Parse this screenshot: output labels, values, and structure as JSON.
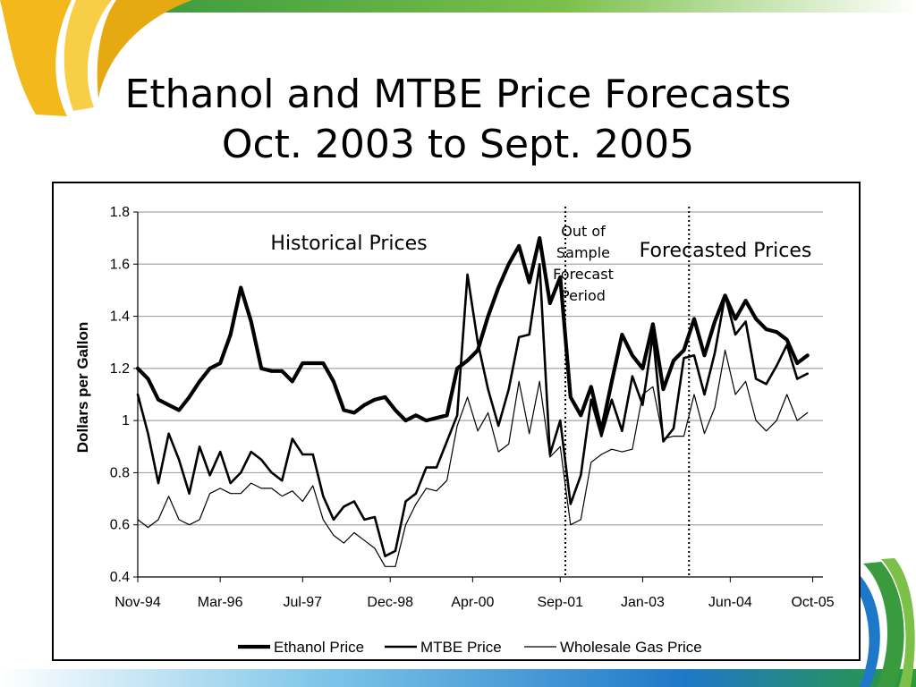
{
  "slide": {
    "title_line1": "Ethanol and MTBE Price Forecasts",
    "title_line2": "Oct. 2003 to Sept. 2005",
    "colors": {
      "accent_gold": "#f2b81c",
      "accent_green": "#3a9a3e",
      "accent_blue": "#1e78c8"
    }
  },
  "chart_data": {
    "type": "line",
    "title": "",
    "xlabel": "",
    "ylabel": "Dollars per Gallon",
    "ylim": [
      0.4,
      1.8
    ],
    "yticks": [
      "0.4",
      "0.6",
      "0.8",
      "1",
      "1.2",
      "1.4",
      "1.6",
      "1.8"
    ],
    "xlim": [
      "Nov-94",
      "Dec-05"
    ],
    "xticks": [
      "Nov-94",
      "Mar-96",
      "Jul-97",
      "Dec-98",
      "Apr-00",
      "Sep-01",
      "Jan-03",
      "Jun-04",
      "Oct-05"
    ],
    "grid": "horizontal",
    "legend_position": "bottom",
    "x": [
      "1994-11",
      "1995-01",
      "1995-03",
      "1995-05",
      "1995-07",
      "1995-09",
      "1995-11",
      "1996-01",
      "1996-03",
      "1996-05",
      "1996-07",
      "1996-09",
      "1996-11",
      "1997-01",
      "1997-03",
      "1997-05",
      "1997-07",
      "1997-09",
      "1997-11",
      "1998-01",
      "1998-03",
      "1998-05",
      "1998-07",
      "1998-09",
      "1998-11",
      "1999-01",
      "1999-03",
      "1999-05",
      "1999-07",
      "1999-09",
      "1999-11",
      "2000-01",
      "2000-03",
      "2000-05",
      "2000-07",
      "2000-09",
      "2000-11",
      "2001-01",
      "2001-03",
      "2001-05",
      "2001-07",
      "2001-09",
      "2001-11",
      "2002-01",
      "2002-03",
      "2002-05",
      "2002-07",
      "2002-09",
      "2002-11",
      "2003-01",
      "2003-03",
      "2003-05",
      "2003-07",
      "2003-09",
      "2003-11",
      "2004-01",
      "2004-03",
      "2004-05",
      "2004-07",
      "2004-09",
      "2004-11",
      "2005-01",
      "2005-03",
      "2005-05",
      "2005-07",
      "2005-09"
    ],
    "series": [
      {
        "name": "Ethanol Price",
        "values": [
          1.2,
          1.16,
          1.08,
          1.06,
          1.04,
          1.09,
          1.15,
          1.2,
          1.22,
          1.33,
          1.51,
          1.38,
          1.2,
          1.19,
          1.19,
          1.15,
          1.22,
          1.22,
          1.22,
          1.15,
          1.04,
          1.03,
          1.06,
          1.08,
          1.09,
          1.04,
          1.0,
          1.02,
          1.0,
          1.01,
          1.02,
          1.2,
          1.23,
          1.27,
          1.4,
          1.51,
          1.6,
          1.67,
          1.53,
          1.7,
          1.45,
          1.55,
          1.09,
          1.02,
          1.13,
          0.96,
          1.15,
          1.33,
          1.25,
          1.2,
          1.37,
          1.12,
          1.23,
          1.27,
          1.39,
          1.25,
          1.38,
          1.48,
          1.39,
          1.46,
          1.39,
          1.35,
          1.34,
          1.31,
          1.22,
          1.25
        ]
      },
      {
        "name": "MTBE Price",
        "values": [
          1.1,
          0.95,
          0.76,
          0.95,
          0.85,
          0.72,
          0.9,
          0.79,
          0.88,
          0.76,
          0.8,
          0.88,
          0.85,
          0.8,
          0.77,
          0.93,
          0.87,
          0.87,
          0.71,
          0.62,
          0.67,
          0.69,
          0.62,
          0.63,
          0.48,
          0.5,
          0.69,
          0.72,
          0.82,
          0.82,
          0.92,
          1.02,
          1.56,
          1.3,
          1.12,
          0.98,
          1.12,
          1.32,
          1.33,
          1.6,
          0.87,
          1.0,
          0.68,
          0.79,
          1.08,
          0.94,
          1.08,
          0.96,
          1.17,
          1.06,
          1.33,
          0.92,
          0.97,
          1.24,
          1.25,
          1.1,
          1.26,
          1.48,
          1.33,
          1.38,
          1.16,
          1.14,
          1.21,
          1.29,
          1.16,
          1.18
        ]
      },
      {
        "name": "Wholesale Gas Price",
        "values": [
          0.62,
          0.59,
          0.62,
          0.71,
          0.62,
          0.6,
          0.62,
          0.72,
          0.74,
          0.72,
          0.72,
          0.76,
          0.74,
          0.74,
          0.71,
          0.73,
          0.69,
          0.75,
          0.62,
          0.56,
          0.53,
          0.57,
          0.54,
          0.51,
          0.44,
          0.44,
          0.6,
          0.68,
          0.74,
          0.73,
          0.77,
          0.98,
          1.09,
          0.96,
          1.03,
          0.88,
          0.91,
          1.15,
          0.95,
          1.15,
          0.86,
          0.9,
          0.6,
          0.62,
          0.84,
          0.87,
          0.89,
          0.88,
          0.89,
          1.1,
          1.13,
          0.93,
          0.94,
          0.94,
          1.1,
          0.95,
          1.05,
          1.27,
          1.1,
          1.15,
          1.0,
          0.96,
          1.0,
          1.1,
          1.0,
          1.03
        ]
      }
    ],
    "period_dividers": [
      "2001-10",
      "2003-10"
    ],
    "annotations": {
      "historical": "Historical Prices",
      "out_of_sample_line1": "Out of",
      "out_of_sample_line2": "Sample",
      "out_of_sample_line3": "Forecast",
      "out_of_sample_line4": "Period",
      "forecasted": "Forecasted Prices"
    }
  }
}
